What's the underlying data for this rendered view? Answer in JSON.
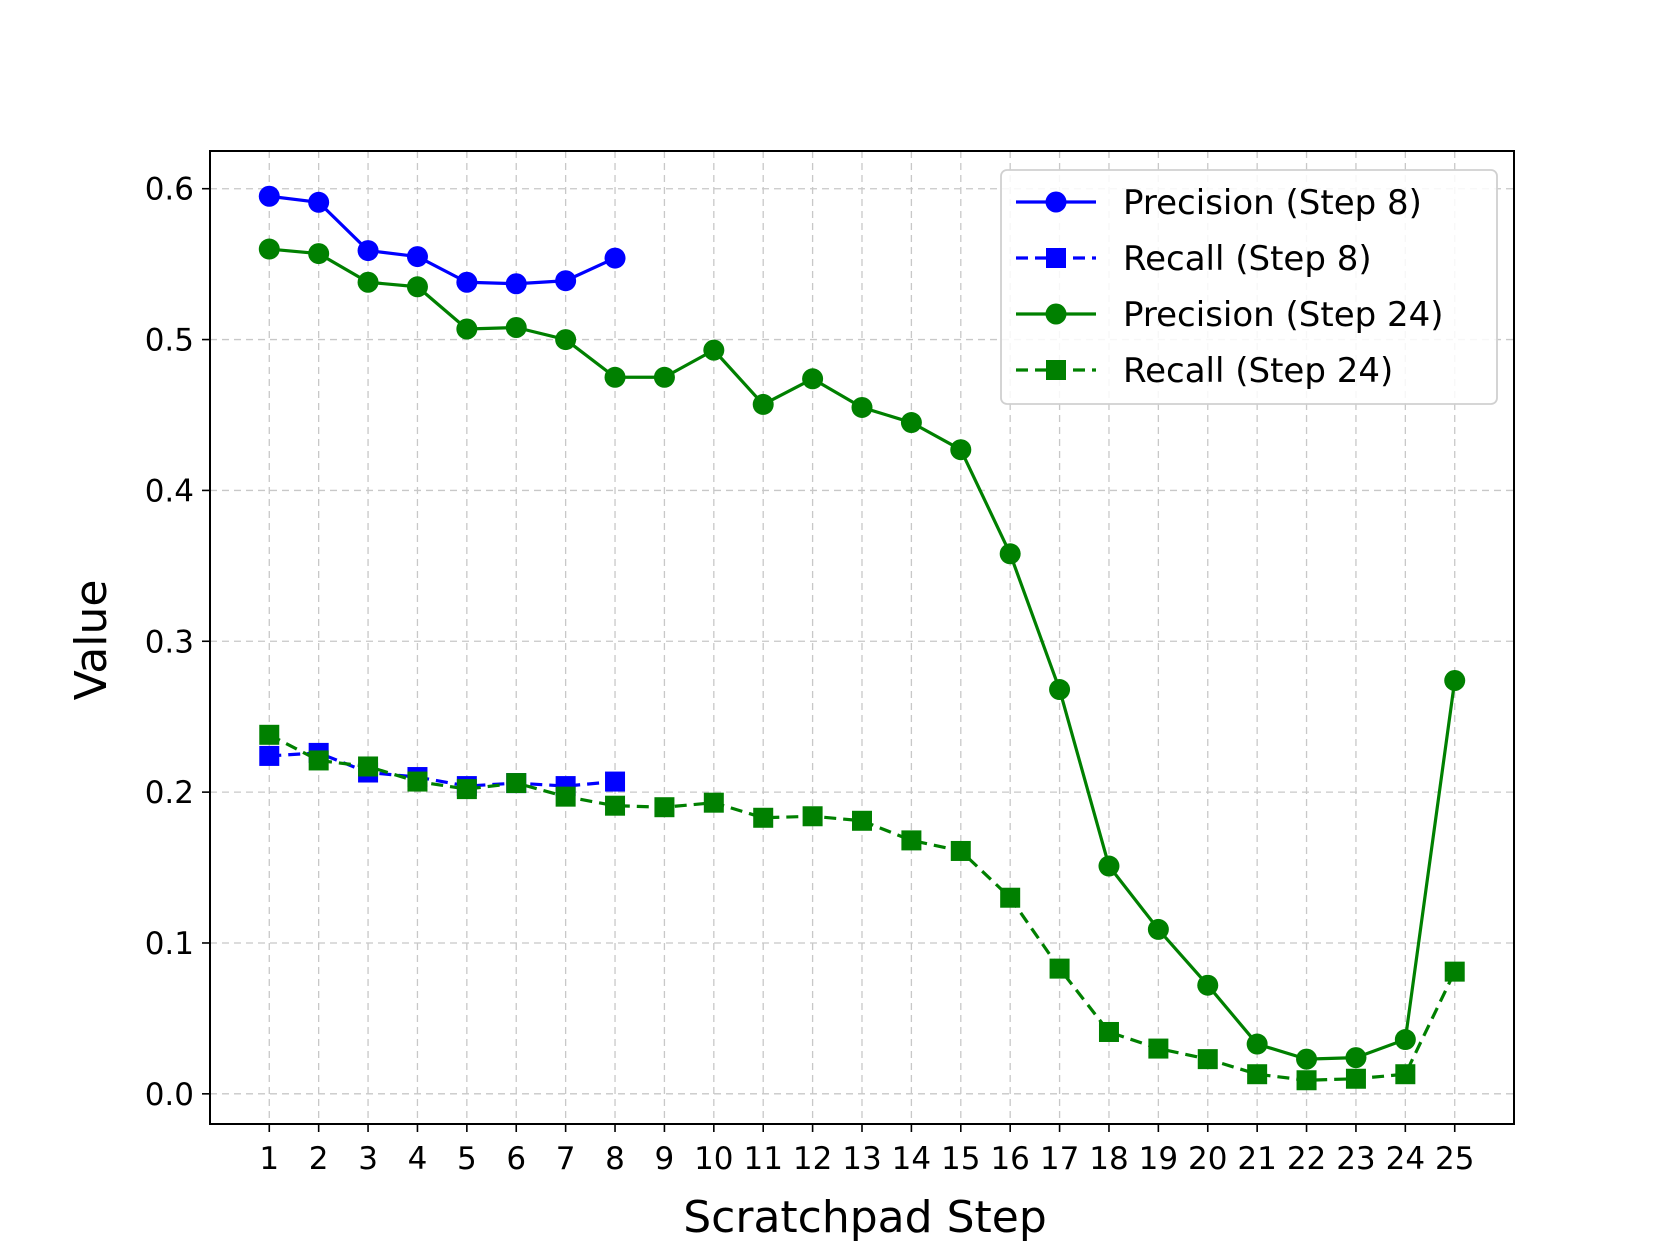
{
  "chart_data": {
    "type": "line",
    "title": "",
    "xlabel": "Scratchpad Step",
    "ylabel": "Value",
    "x": [
      1,
      2,
      3,
      4,
      5,
      6,
      7,
      8,
      9,
      10,
      11,
      12,
      13,
      14,
      15,
      16,
      17,
      18,
      19,
      20,
      21,
      22,
      23,
      24,
      25
    ],
    "xticks": [
      "1",
      "2",
      "3",
      "4",
      "5",
      "6",
      "7",
      "8",
      "9",
      "10",
      "11",
      "12",
      "13",
      "14",
      "15",
      "16",
      "17",
      "18",
      "19",
      "20",
      "21",
      "22",
      "23",
      "24",
      "25"
    ],
    "xlim": [
      -0.2,
      26.2
    ],
    "yticks": [
      "0.0",
      "0.1",
      "0.2",
      "0.3",
      "0.4",
      "0.5",
      "0.6"
    ],
    "ylim": [
      -0.02,
      0.625
    ],
    "grid": true,
    "legend_position": "top-right",
    "series": [
      {
        "name": "Precision (Step 8)",
        "color": "#0000ff",
        "marker": "circle",
        "linestyle": "solid",
        "x": [
          1,
          2,
          3,
          4,
          5,
          6,
          7,
          8
        ],
        "values": [
          0.595,
          0.591,
          0.559,
          0.555,
          0.538,
          0.537,
          0.539,
          0.554
        ]
      },
      {
        "name": "Recall (Step 8)",
        "color": "#0000ff",
        "marker": "square",
        "linestyle": "dashed",
        "x": [
          1,
          2,
          3,
          4,
          5,
          6,
          7,
          8
        ],
        "values": [
          0.224,
          0.226,
          0.213,
          0.21,
          0.204,
          0.206,
          0.204,
          0.207
        ]
      },
      {
        "name": "Precision (Step 24)",
        "color": "#008000",
        "marker": "circle",
        "linestyle": "solid",
        "x": [
          1,
          2,
          3,
          4,
          5,
          6,
          7,
          8,
          9,
          10,
          11,
          12,
          13,
          14,
          15,
          16,
          17,
          18,
          19,
          20,
          21,
          22,
          23,
          24,
          25
        ],
        "values": [
          0.56,
          0.557,
          0.538,
          0.535,
          0.507,
          0.508,
          0.5,
          0.475,
          0.475,
          0.493,
          0.457,
          0.474,
          0.455,
          0.445,
          0.427,
          0.358,
          0.268,
          0.151,
          0.109,
          0.072,
          0.033,
          0.023,
          0.024,
          0.036,
          0.274
        ]
      },
      {
        "name": "Recall (Step 24)",
        "color": "#008000",
        "marker": "square",
        "linestyle": "dashed",
        "x": [
          1,
          2,
          3,
          4,
          5,
          6,
          7,
          8,
          9,
          10,
          11,
          12,
          13,
          14,
          15,
          16,
          17,
          18,
          19,
          20,
          21,
          22,
          23,
          24,
          25
        ],
        "values": [
          0.238,
          0.221,
          0.217,
          0.207,
          0.202,
          0.206,
          0.197,
          0.191,
          0.19,
          0.193,
          0.183,
          0.184,
          0.181,
          0.168,
          0.161,
          0.13,
          0.083,
          0.041,
          0.03,
          0.023,
          0.013,
          0.009,
          0.01,
          0.013,
          0.081
        ]
      }
    ]
  }
}
